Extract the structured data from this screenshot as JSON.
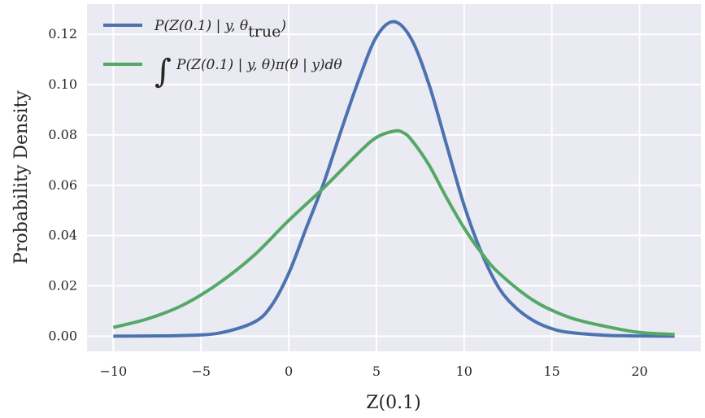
{
  "chart_data": {
    "type": "line",
    "xlabel": "Z(0.1)",
    "ylabel": "Probability Density",
    "xlim": [
      -11.5,
      23.5
    ],
    "ylim": [
      -0.006,
      0.132
    ],
    "xticks": [
      -10,
      -5,
      0,
      5,
      10,
      15,
      20
    ],
    "xtick_labels": [
      "−10",
      "−5",
      "0",
      "5",
      "10",
      "15",
      "20"
    ],
    "yticks": [
      0.0,
      0.02,
      0.04,
      0.06,
      0.08,
      0.1,
      0.12
    ],
    "ytick_labels": [
      "0.00",
      "0.02",
      "0.04",
      "0.06",
      "0.08",
      "0.10",
      "0.12"
    ],
    "grid": true,
    "legend_position": "top-left",
    "series": [
      {
        "name": "P(Z(0.1) | y, θtrue)",
        "name_main": "P(Z(0.1) | y, θ",
        "name_sub": "true",
        "name_close": ")",
        "color": "#4C72B0",
        "x": [
          -10,
          -8,
          -6,
          -4,
          -2,
          -1,
          0,
          1,
          2,
          3,
          4,
          5,
          6,
          7,
          8,
          9,
          10,
          11,
          12,
          13,
          14,
          15,
          16,
          18,
          20,
          22
        ],
        "y": [
          0.0,
          0.0001,
          0.0003,
          0.0012,
          0.0055,
          0.012,
          0.025,
          0.043,
          0.061,
          0.082,
          0.102,
          0.119,
          0.125,
          0.118,
          0.1,
          0.076,
          0.052,
          0.033,
          0.019,
          0.011,
          0.006,
          0.003,
          0.0015,
          0.0004,
          0.0001,
          0.0
        ]
      },
      {
        "name": "∫P(Z(0.1) | y, θ)π(θ | y)dθ",
        "integral_symbol": "∫",
        "name_main": "P(Z(0.1) | y, θ)π(θ | y)dθ",
        "color": "#55A868",
        "x": [
          -10,
          -8,
          -6,
          -4,
          -2,
          0,
          2,
          4,
          5,
          6,
          6.5,
          7,
          8,
          9,
          10,
          11,
          12,
          14,
          16,
          18,
          20,
          22
        ],
        "y": [
          0.0035,
          0.007,
          0.0125,
          0.021,
          0.032,
          0.046,
          0.059,
          0.073,
          0.079,
          0.0815,
          0.081,
          0.078,
          0.068,
          0.055,
          0.043,
          0.033,
          0.025,
          0.014,
          0.0075,
          0.004,
          0.0015,
          0.0007
        ]
      }
    ]
  }
}
